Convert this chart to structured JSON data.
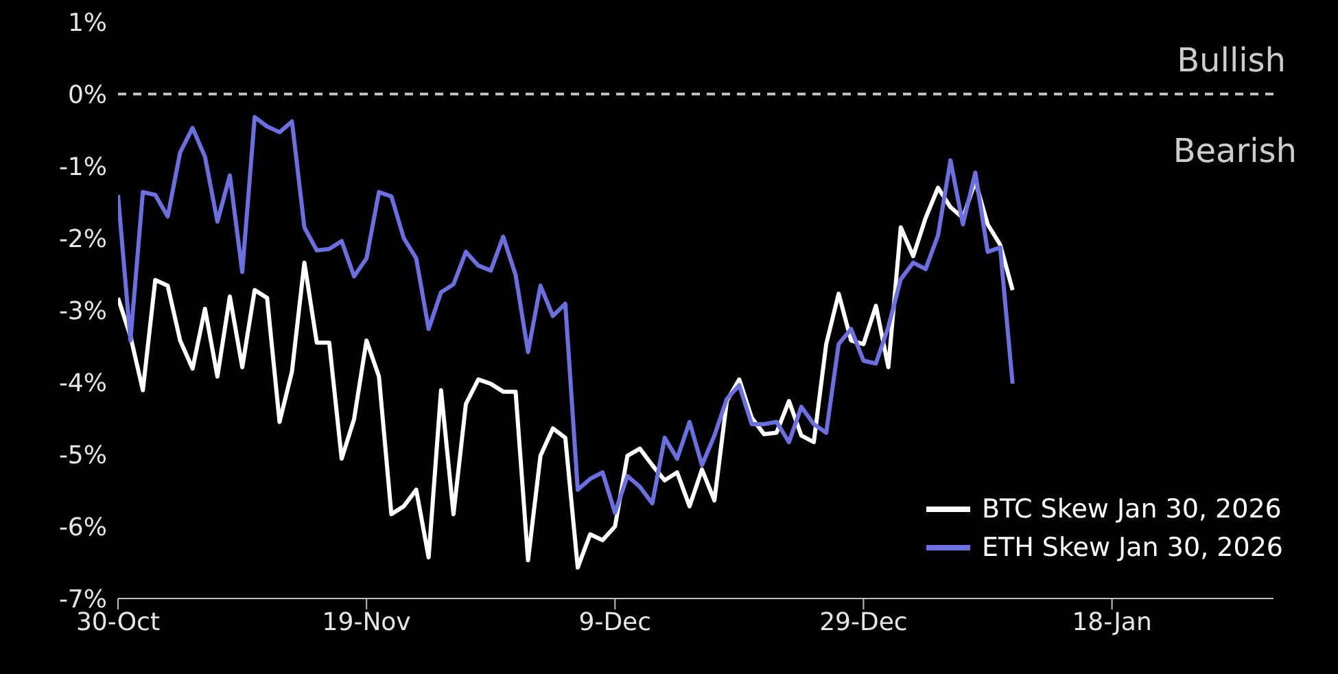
{
  "chart_data": {
    "type": "line",
    "x": [
      "2025-10-30",
      "2025-10-31",
      "2025-11-01",
      "2025-11-02",
      "2025-11-03",
      "2025-11-04",
      "2025-11-05",
      "2025-11-06",
      "2025-11-07",
      "2025-11-08",
      "2025-11-09",
      "2025-11-10",
      "2025-11-11",
      "2025-11-12",
      "2025-11-13",
      "2025-11-14",
      "2025-11-15",
      "2025-11-16",
      "2025-11-17",
      "2025-11-18",
      "2025-11-19",
      "2025-11-20",
      "2025-11-21",
      "2025-11-22",
      "2025-11-23",
      "2025-11-24",
      "2025-11-25",
      "2025-11-26",
      "2025-11-27",
      "2025-11-28",
      "2025-11-29",
      "2025-11-30",
      "2025-12-01",
      "2025-12-02",
      "2025-12-03",
      "2025-12-04",
      "2025-12-05",
      "2025-12-06",
      "2025-12-07",
      "2025-12-08",
      "2025-12-09",
      "2025-12-10",
      "2025-12-11",
      "2025-12-12",
      "2025-12-13",
      "2025-12-14",
      "2025-12-15",
      "2025-12-16",
      "2025-12-17",
      "2025-12-18",
      "2025-12-19",
      "2025-12-20",
      "2025-12-21",
      "2025-12-22",
      "2025-12-23",
      "2025-12-24",
      "2025-12-25",
      "2025-12-26",
      "2025-12-27",
      "2025-12-28",
      "2025-12-29",
      "2025-12-30",
      "2025-12-31",
      "2026-01-01",
      "2026-01-02",
      "2026-01-03",
      "2026-01-04",
      "2026-01-05",
      "2026-01-06",
      "2026-01-07",
      "2026-01-08",
      "2026-01-09",
      "2026-01-10"
    ],
    "series": [
      {
        "name": "BTC Skew Jan 30, 2026",
        "color": "#ffffff",
        "values": [
          -2.83,
          -3.36,
          -4.11,
          -2.58,
          -2.66,
          -3.42,
          -3.81,
          -2.98,
          -3.92,
          -2.81,
          -3.79,
          -2.72,
          -2.83,
          -4.55,
          -3.85,
          -2.34,
          -3.45,
          -3.45,
          -5.06,
          -4.51,
          -3.42,
          -3.92,
          -5.83,
          -5.72,
          -5.49,
          -6.43,
          -4.11,
          -5.83,
          -4.3,
          -3.96,
          -4.02,
          -4.13,
          -4.13,
          -6.47,
          -5.02,
          -4.64,
          -4.77,
          -6.57,
          -6.11,
          -6.19,
          -6.0,
          -5.02,
          -4.92,
          -5.15,
          -5.36,
          -5.25,
          -5.72,
          -5.21,
          -5.64,
          -4.26,
          -3.96,
          -4.49,
          -4.72,
          -4.7,
          -4.26,
          -4.74,
          -4.83,
          -3.47,
          -2.77,
          -3.42,
          -3.47,
          -2.94,
          -3.79,
          -1.85,
          -2.25,
          -1.72,
          -1.3,
          -1.57,
          -1.72,
          -1.21,
          -1.81,
          -2.09,
          -2.72
        ]
      },
      {
        "name": "ETH Skew Jan 30, 2026",
        "color": "#6b6fe0",
        "values": [
          -1.4,
          -3.42,
          -1.36,
          -1.4,
          -1.7,
          -0.81,
          -0.47,
          -0.87,
          -1.77,
          -1.13,
          -2.47,
          -0.32,
          -0.45,
          -0.53,
          -0.38,
          -1.85,
          -2.17,
          -2.15,
          -2.04,
          -2.53,
          -2.28,
          -1.36,
          -1.42,
          -2.0,
          -2.28,
          -3.26,
          -2.75,
          -2.64,
          -2.19,
          -2.38,
          -2.45,
          -1.98,
          -2.51,
          -3.58,
          -2.66,
          -3.08,
          -2.91,
          -5.49,
          -5.34,
          -5.25,
          -5.81,
          -5.3,
          -5.45,
          -5.68,
          -4.77,
          -5.06,
          -4.55,
          -5.15,
          -4.74,
          -4.23,
          -4.04,
          -4.58,
          -4.58,
          -4.55,
          -4.83,
          -4.34,
          -4.58,
          -4.7,
          -3.47,
          -3.26,
          -3.7,
          -3.74,
          -3.23,
          -2.57,
          -2.34,
          -2.43,
          -1.96,
          -0.92,
          -1.81,
          -1.09,
          -2.19,
          -2.13,
          -4.02
        ]
      }
    ],
    "xlim": [
      "2025-10-30",
      "2026-01-31"
    ],
    "xticks": [
      {
        "value": "2025-10-30",
        "label": "30-Oct"
      },
      {
        "value": "2025-11-19",
        "label": "19-Nov"
      },
      {
        "value": "2025-12-09",
        "label": "9-Dec"
      },
      {
        "value": "2025-12-29",
        "label": "29-Dec"
      },
      {
        "value": "2026-01-18",
        "label": "18-Jan"
      }
    ],
    "ylim": [
      -7,
      1
    ],
    "yticks": [
      {
        "value": -7,
        "label": "-7%"
      },
      {
        "value": -6,
        "label": "-6%"
      },
      {
        "value": -5,
        "label": "-5%"
      },
      {
        "value": -4,
        "label": "-4%"
      },
      {
        "value": -3,
        "label": "-3%"
      },
      {
        "value": -2,
        "label": "-2%"
      },
      {
        "value": -1,
        "label": "-1%"
      },
      {
        "value": 0,
        "label": "0%"
      },
      {
        "value": 1,
        "label": "1%"
      }
    ],
    "ref_lines": [
      {
        "axis": "y",
        "value": 0,
        "label": null,
        "color": "#bfbfbf",
        "line_style": "dashed"
      }
    ],
    "annotations": [
      "Bullish",
      "Bearish"
    ],
    "grid": false,
    "legend": "bottom right"
  }
}
